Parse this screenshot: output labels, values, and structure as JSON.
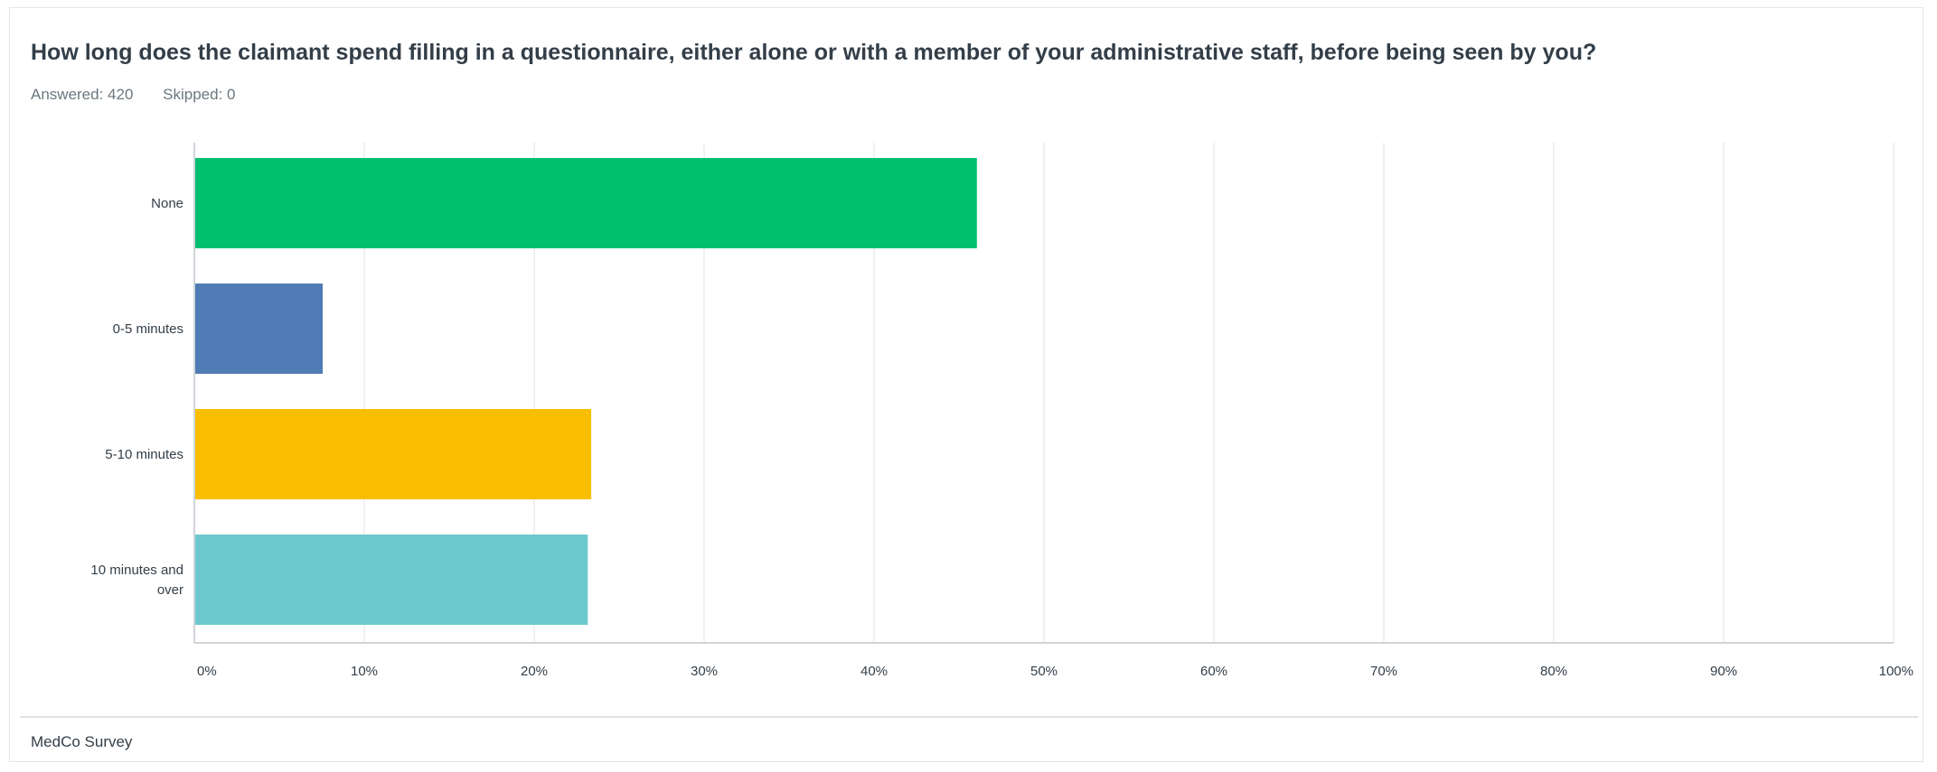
{
  "question": "How long does the claimant spend filling in a questionnaire, either alone or with a member of your administrative staff, before being seen by you?",
  "stats": {
    "answered": "Answered: 420",
    "skipped": "Skipped: 0"
  },
  "footer": "MedCo Survey",
  "chart_data": {
    "type": "bar",
    "orientation": "horizontal",
    "categories": [
      {
        "label": [
          "None"
        ],
        "value": 46,
        "color": "#00bf6f"
      },
      {
        "label": [
          "0-5 minutes"
        ],
        "value": 7.5,
        "color": "#507cb6"
      },
      {
        "label": [
          "5-10 minutes"
        ],
        "value": 23.3,
        "color": "#f9be00"
      },
      {
        "label": [
          "10 minutes and",
          "over"
        ],
        "value": 23.1,
        "color": "#6bc8cd"
      }
    ],
    "xlim": [
      0,
      100
    ],
    "xticks": [
      "0%",
      "10%",
      "20%",
      "30%",
      "40%",
      "50%",
      "60%",
      "70%",
      "80%",
      "90%",
      "100%"
    ],
    "grid": true
  }
}
